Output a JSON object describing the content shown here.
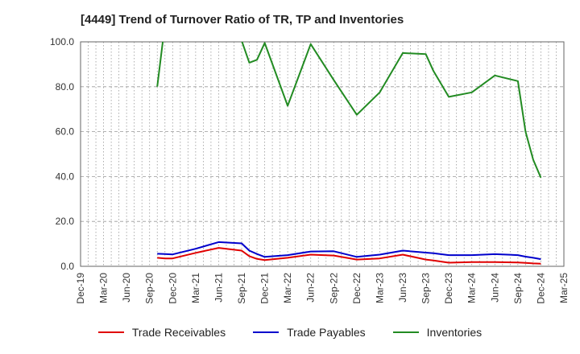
{
  "title": "[4449]  Trend of Turnover Ratio of TR, TP and Inventories",
  "colors": {
    "receivables": "#e00000",
    "payables": "#0000cc",
    "inventories": "#228b22",
    "grid": "#999999",
    "axis": "#666666"
  },
  "chart_data": {
    "type": "line",
    "title": "[4449]  Trend of Turnover Ratio of TR, TP and Inventories",
    "xlabel": "",
    "ylabel": "",
    "ylim": [
      0,
      100
    ],
    "yticks": [
      "0.0",
      "20.0",
      "40.0",
      "60.0",
      "80.0",
      "100.0"
    ],
    "xticks": [
      "Dec-19",
      "Mar-20",
      "Jun-20",
      "Sep-20",
      "Dec-20",
      "Mar-21",
      "Jun-21",
      "Sep-21",
      "Dec-21",
      "Mar-22",
      "Jun-22",
      "Sep-22",
      "Dec-22",
      "Mar-23",
      "Jun-23",
      "Sep-23",
      "Dec-23",
      "Mar-24",
      "Jun-24",
      "Sep-24",
      "Dec-24",
      "Mar-25"
    ],
    "grid": true,
    "legend_position": "bottom",
    "x": [
      "Oct-20",
      "Nov-20",
      "Dec-20",
      "Mar-21",
      "Jun-21",
      "Sep-21",
      "Oct-21",
      "Nov-21",
      "Dec-21",
      "Mar-22",
      "Jun-22",
      "Sep-22",
      "Dec-22",
      "Mar-23",
      "Jun-23",
      "Sep-23",
      "Oct-23",
      "Dec-23",
      "Mar-24",
      "Jun-24",
      "Sep-24",
      "Oct-24",
      "Nov-24",
      "Dec-24"
    ],
    "series": [
      {
        "name": "Trade Receivables",
        "color": "#e00000",
        "values": [
          3.8,
          3.5,
          3.5,
          6.0,
          8.2,
          7.0,
          4.5,
          3.3,
          2.8,
          3.8,
          5.2,
          4.8,
          3.0,
          3.5,
          5.2,
          3.0,
          2.6,
          1.6,
          1.9,
          1.9,
          1.7,
          1.5,
          1.3,
          1.2
        ]
      },
      {
        "name": "Trade Payables",
        "color": "#0000cc",
        "values": [
          5.6,
          5.5,
          5.3,
          7.8,
          10.8,
          10.2,
          7.0,
          5.5,
          4.2,
          5.0,
          6.6,
          6.7,
          4.2,
          5.2,
          7.0,
          6.1,
          5.8,
          5.0,
          5.0,
          5.4,
          5.0,
          4.3,
          3.8,
          3.2
        ]
      },
      {
        "name": "Inventories",
        "color": "#228b22",
        "values": [
          80.0,
          108.0,
          110.0,
          115.0,
          112.0,
          100.5,
          90.7,
          92.0,
          99.5,
          71.5,
          99.0,
          83.0,
          67.5,
          77.5,
          95.0,
          94.5,
          87.0,
          75.5,
          77.5,
          85.0,
          82.5,
          60.0,
          47.5,
          39.5
        ]
      }
    ]
  },
  "legend": [
    {
      "label": "Trade Receivables",
      "color": "#e00000"
    },
    {
      "label": "Trade Payables",
      "color": "#0000cc"
    },
    {
      "label": "Inventories",
      "color": "#228b22"
    }
  ]
}
